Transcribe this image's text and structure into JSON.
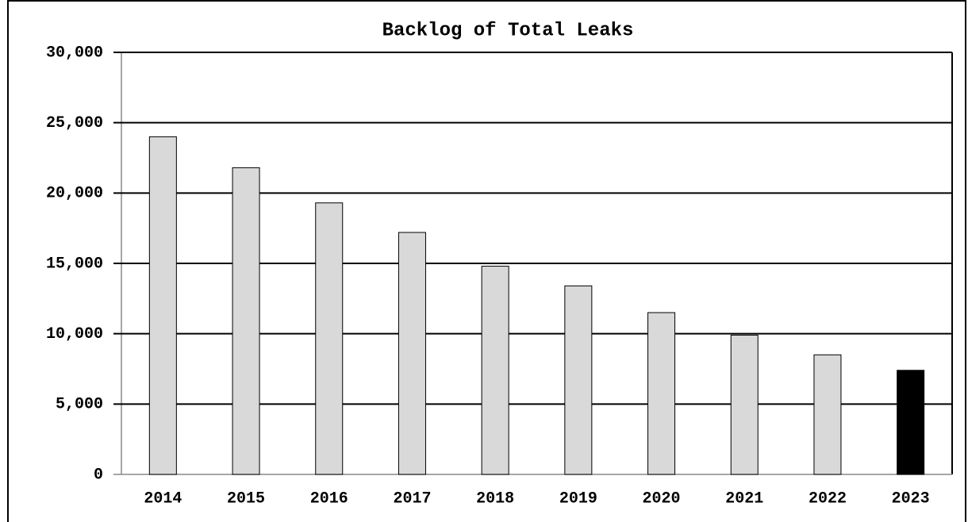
{
  "chart_data": {
    "type": "bar",
    "title": "Backlog of Total Leaks",
    "categories": [
      "2014",
      "2015",
      "2016",
      "2017",
      "2018",
      "2019",
      "2020",
      "2021",
      "2022",
      "2023"
    ],
    "values": [
      24000,
      21800,
      19300,
      17200,
      14800,
      13400,
      11500,
      9900,
      8500,
      7400
    ],
    "colors": [
      "#d9d9d9",
      "#d9d9d9",
      "#d9d9d9",
      "#d9d9d9",
      "#d9d9d9",
      "#d9d9d9",
      "#d9d9d9",
      "#d9d9d9",
      "#d9d9d9",
      "#000000"
    ],
    "ylim": [
      0,
      30000
    ],
    "yticks": [
      0,
      {
        "value": 5000,
        "label": "5,000"
      },
      {
        "value": 10000,
        "label": "10,000"
      },
      {
        "value": 15000,
        "label": "15,000"
      },
      {
        "value": 20000,
        "label": "20,000"
      },
      {
        "value": 25000,
        "label": "25,000"
      },
      {
        "value": 30000,
        "label": "30,000"
      }
    ],
    "grid": true
  }
}
